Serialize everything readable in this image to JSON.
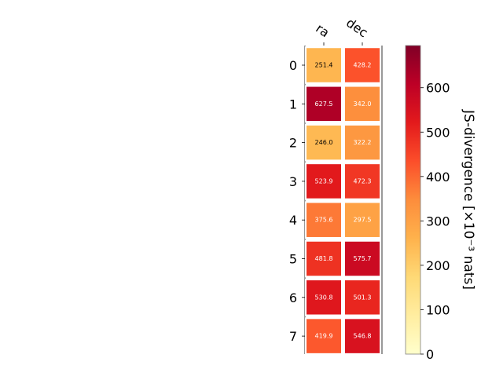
{
  "chart_data": {
    "type": "heatmap",
    "title": "",
    "columns": [
      "ra",
      "dec"
    ],
    "rows": [
      "0",
      "1",
      "2",
      "3",
      "4",
      "5",
      "6",
      "7"
    ],
    "values": [
      [
        251.4,
        428.2
      ],
      [
        627.5,
        342.0
      ],
      [
        246.0,
        322.2
      ],
      [
        523.9,
        472.3
      ],
      [
        375.6,
        297.5
      ],
      [
        481.8,
        575.7
      ],
      [
        530.8,
        501.3
      ],
      [
        419.9,
        546.8
      ]
    ],
    "value_labels": [
      [
        "251.4",
        "428.2"
      ],
      [
        "627.5",
        "342.0"
      ],
      [
        "246.0",
        "322.2"
      ],
      [
        "523.9",
        "472.3"
      ],
      [
        "375.6",
        "297.5"
      ],
      [
        "481.8",
        "575.7"
      ],
      [
        "530.8",
        "501.3"
      ],
      [
        "419.9",
        "546.8"
      ]
    ],
    "colormap": "YlOrRd",
    "colormap_stops": [
      "#ffffcc",
      "#ffeda0",
      "#fed976",
      "#feb24c",
      "#fd8d3c",
      "#fc4e2a",
      "#e31a1c",
      "#bd0026",
      "#800026"
    ],
    "vmin": 0,
    "vmax": 695,
    "colorbar": {
      "label": "JS-divergence [×10⁻³ nats]",
      "ticks": [
        0,
        100,
        200,
        300,
        400,
        500,
        600
      ],
      "tick_labels": [
        "0",
        "100",
        "200",
        "300",
        "400",
        "500",
        "600"
      ]
    },
    "grid": false,
    "legend": "colorbar-right"
  }
}
